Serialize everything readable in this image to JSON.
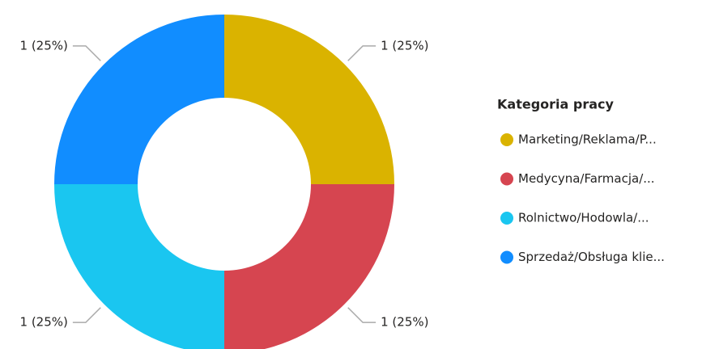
{
  "chart_data": {
    "type": "pie",
    "donut": true,
    "categories": [
      "Marketing/Reklama/P...",
      "Medycyna/Farmacja/...",
      "Rolnictwo/Hodowla/...",
      "Sprzedaż/Obsługa klie..."
    ],
    "values": [
      1,
      1,
      1,
      1
    ],
    "value_labels": [
      "1 (25%)",
      "1 (25%)",
      "1 (25%)",
      "1 (25%)"
    ],
    "colors": [
      "#DAB300",
      "#D64550",
      "#1AC6F0",
      "#118DFF"
    ],
    "legend_title": "Kategoria pracy",
    "legend": "right"
  }
}
